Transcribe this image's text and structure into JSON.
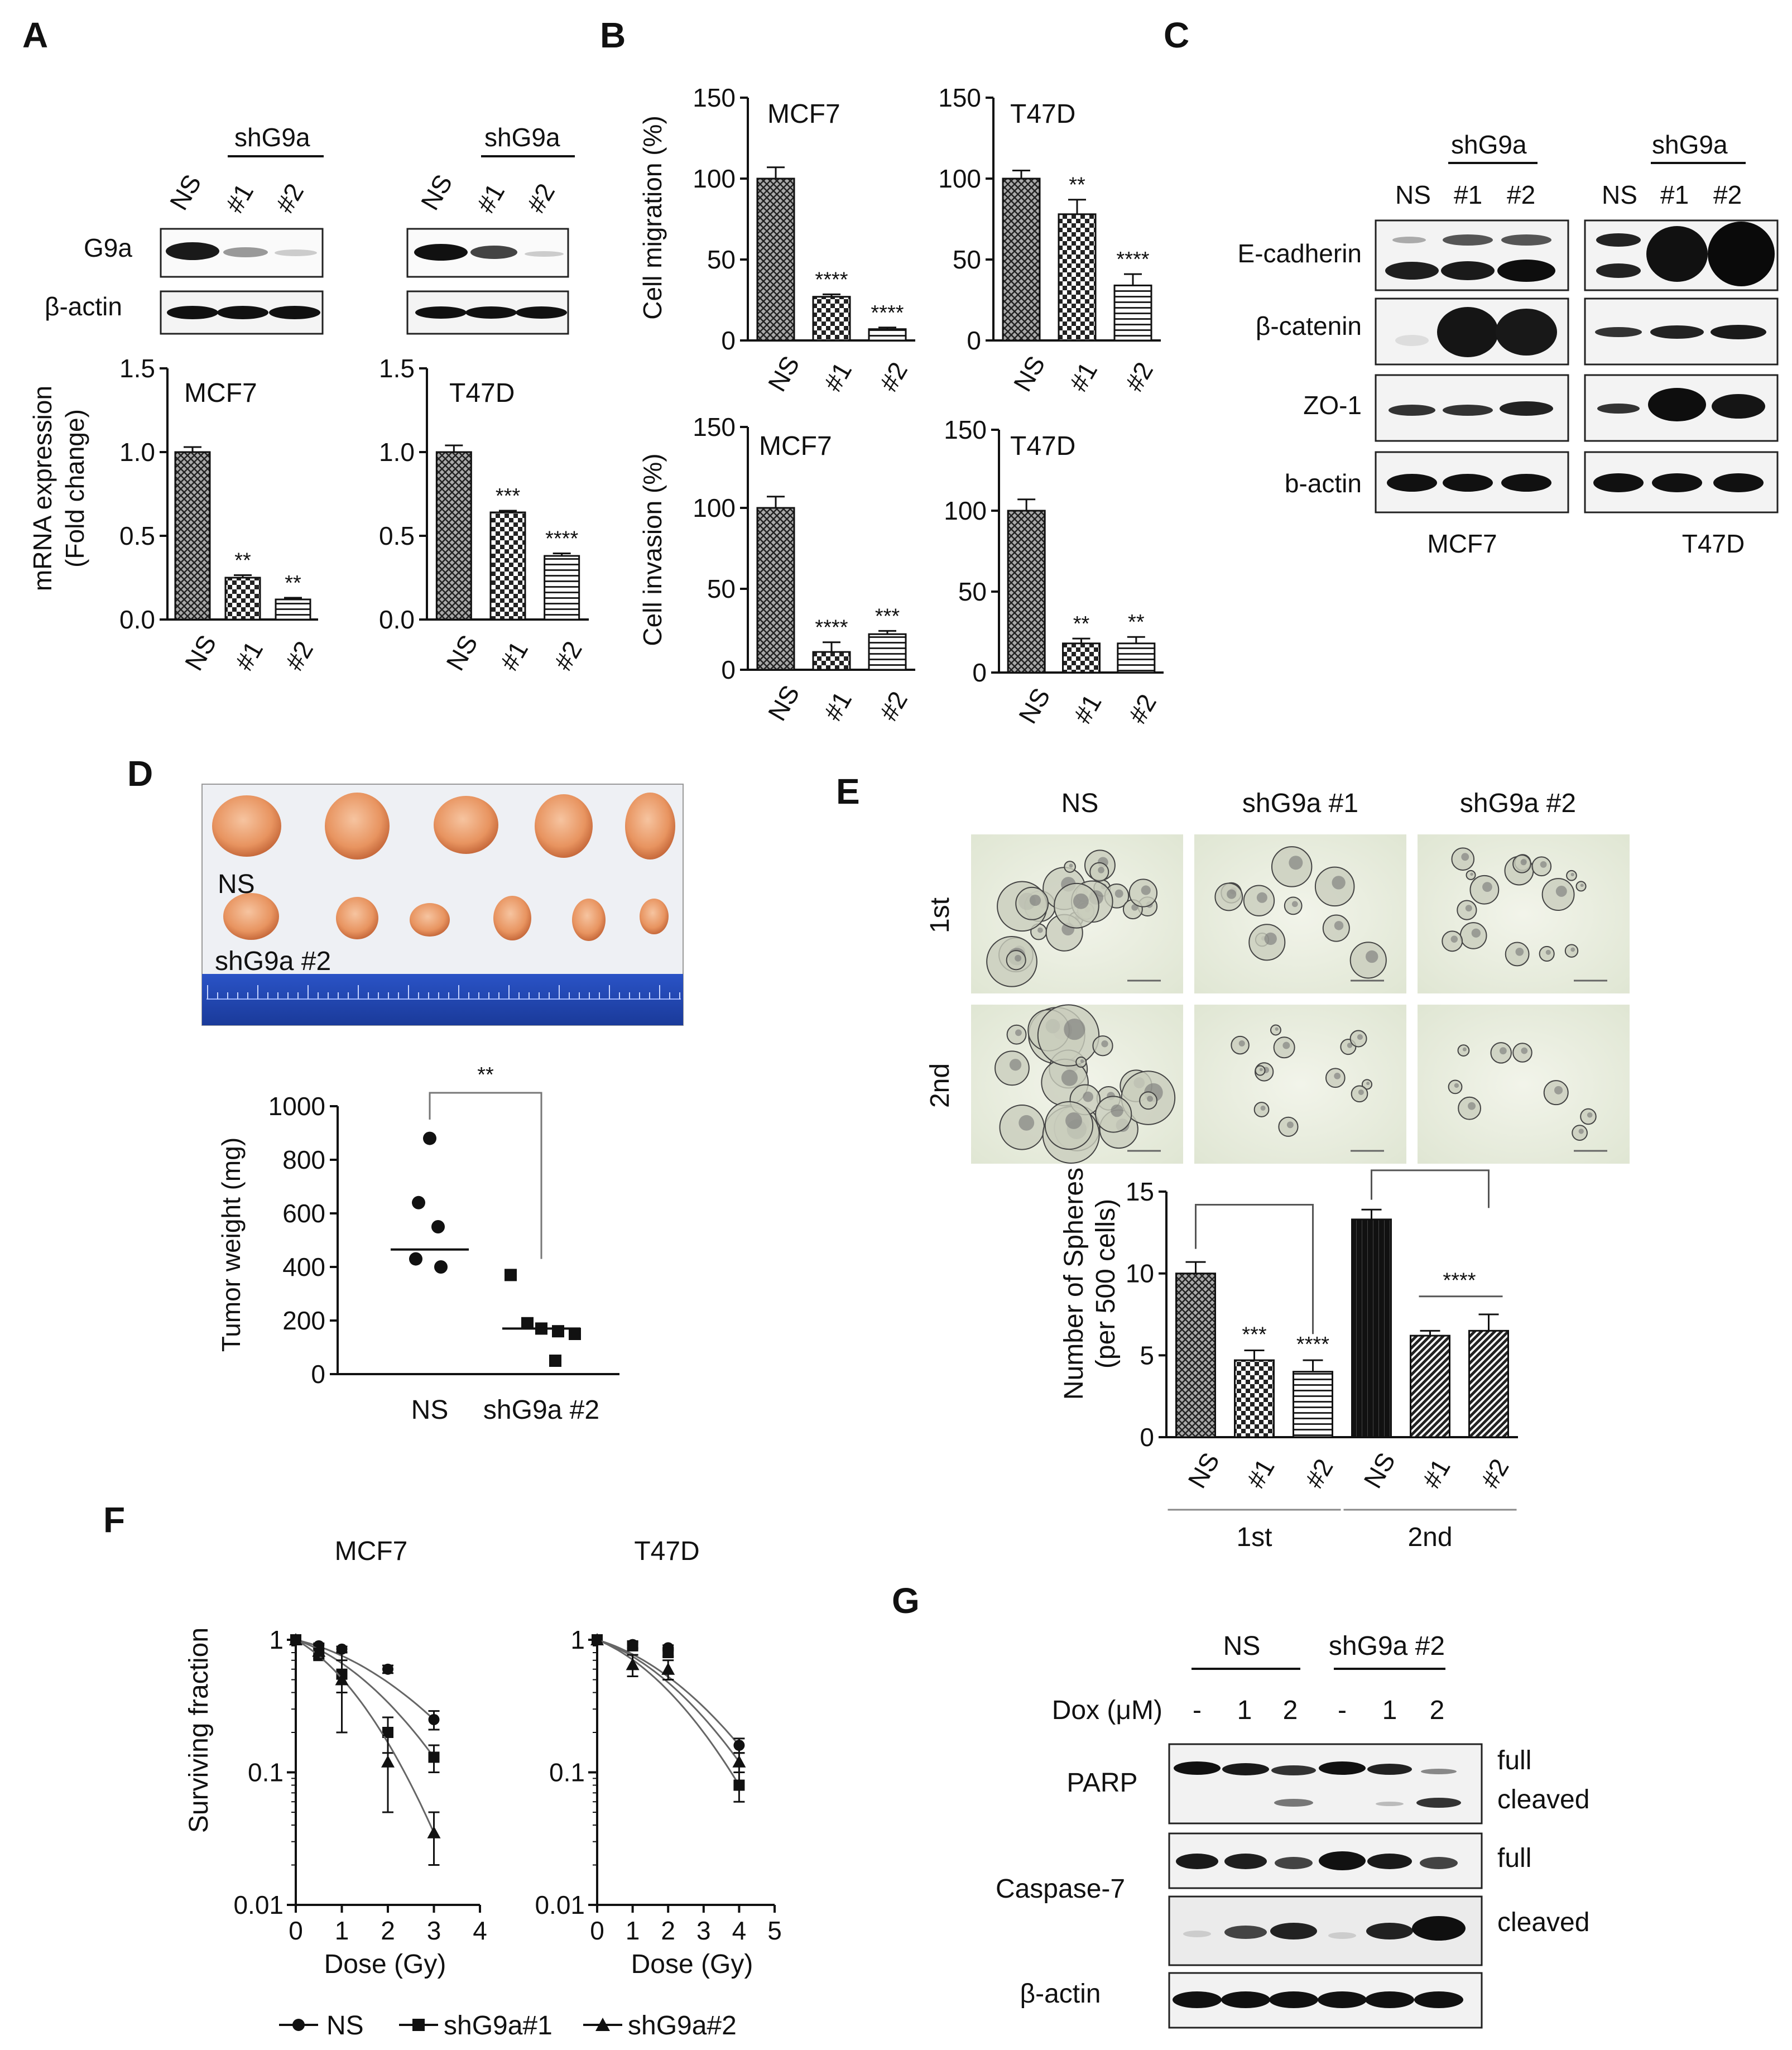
{
  "panel_letters": {
    "A": "A",
    "B": "B",
    "C": "C",
    "D": "D",
    "E": "E",
    "F": "F",
    "G": "G"
  },
  "common": {
    "NS": "NS",
    "n1": "#1",
    "n2": "#2",
    "shG9a": "shG9a",
    "MCF7": "MCF7",
    "T47D": "T47D"
  },
  "panelA": {
    "blot_rows": [
      "G9a",
      "β-actin"
    ],
    "ylabel_1": "mRNA expression",
    "ylabel_2": "(Fold change)",
    "y_ticks": [
      "0.0",
      "0.5",
      "1.0",
      "1.5"
    ]
  },
  "panelB": {
    "ylabel_migration": "Cell migration (%)",
    "ylabel_invasion": "Cell invasion (%)",
    "y_ticks": [
      "0",
      "50",
      "100",
      "150"
    ]
  },
  "panelC": {
    "rows": [
      "E-cadherin",
      "β-catenin",
      "ZO-1",
      "b-actin"
    ]
  },
  "panelD": {
    "photo_label_1": "NS",
    "photo_label_2": "shG9a #2",
    "ylabel": "Tumor weight (mg)",
    "y_ticks": [
      "0",
      "200",
      "400",
      "600",
      "800",
      "1000"
    ],
    "x_labels": [
      "NS",
      "shG9a #2"
    ],
    "sig": "**"
  },
  "panelE": {
    "col_labels": [
      "NS",
      "shG9a #1",
      "shG9a #2"
    ],
    "row_labels": [
      "1st",
      "2nd"
    ],
    "ylabel_1": "Number of Spheres",
    "ylabel_2": "(per 500 cells)",
    "y_ticks": [
      "0",
      "5",
      "10",
      "15"
    ],
    "group_labels": [
      "1st",
      "2nd"
    ],
    "sig_bracket": "****"
  },
  "panelF": {
    "ylabel": "Surviving fraction",
    "xlabel": "Dose (Gy)",
    "y_ticks": [
      "1",
      "0.1",
      "0.01"
    ],
    "legend": [
      "NS",
      "shG9a#1",
      "shG9a#2"
    ]
  },
  "panelG": {
    "group_labels": [
      "NS",
      "shG9a #2"
    ],
    "dox_label": "Dox (μM)",
    "dox_values": [
      "-",
      "1",
      "2",
      "-",
      "1",
      "2"
    ],
    "row_labels": [
      "PARP",
      "Caspase-7",
      "β-actin"
    ],
    "right_labels": [
      "full",
      "cleaved",
      "full",
      "cleaved"
    ]
  },
  "chart_data": [
    {
      "id": "A-MCF7",
      "type": "bar",
      "title": "MCF7",
      "categories": [
        "NS",
        "#1",
        "#2"
      ],
      "values": [
        1.0,
        0.25,
        0.12
      ],
      "errors": [
        0.03,
        0.015,
        0.01
      ],
      "sig": [
        "",
        "**",
        "**"
      ],
      "ylim": [
        0,
        1.5
      ],
      "ylabel": "mRNA expression (Fold change)"
    },
    {
      "id": "A-T47D",
      "type": "bar",
      "title": "T47D",
      "categories": [
        "NS",
        "#1",
        "#2"
      ],
      "values": [
        1.0,
        0.64,
        0.38
      ],
      "errors": [
        0.04,
        0.01,
        0.015
      ],
      "sig": [
        "",
        "***",
        "****"
      ],
      "ylim": [
        0,
        1.5
      ]
    },
    {
      "id": "B-MCF7-migration",
      "type": "bar",
      "title": "MCF7",
      "categories": [
        "NS",
        "#1",
        "#2"
      ],
      "values": [
        100,
        27,
        7
      ],
      "errors": [
        7,
        1.5,
        1
      ],
      "sig": [
        "",
        "****",
        "****"
      ],
      "ylim": [
        0,
        150
      ],
      "ylabel": "Cell migration (%)"
    },
    {
      "id": "B-T47D-migration",
      "type": "bar",
      "title": "T47D",
      "categories": [
        "NS",
        "#1",
        "#2"
      ],
      "values": [
        100,
        78,
        34
      ],
      "errors": [
        5,
        9,
        7
      ],
      "sig": [
        "",
        "**",
        "****"
      ],
      "ylim": [
        0,
        150
      ]
    },
    {
      "id": "B-MCF7-invasion",
      "type": "bar",
      "title": "MCF7",
      "categories": [
        "NS",
        "#1",
        "#2"
      ],
      "values": [
        100,
        11,
        22
      ],
      "errors": [
        7,
        6,
        2
      ],
      "sig": [
        "",
        "****",
        "***"
      ],
      "ylim": [
        0,
        150
      ],
      "ylabel": "Cell invasion (%)"
    },
    {
      "id": "B-T47D-invasion",
      "type": "bar",
      "title": "T47D",
      "categories": [
        "NS",
        "#1",
        "#2"
      ],
      "values": [
        100,
        18,
        18
      ],
      "errors": [
        7,
        3,
        4
      ],
      "sig": [
        "",
        "**",
        "**"
      ],
      "ylim": [
        0,
        150
      ]
    },
    {
      "id": "D-tumor",
      "type": "scatter",
      "categories": [
        "NS",
        "shG9a #2"
      ],
      "points": [
        [
          880,
          640,
          550,
          430,
          400
        ],
        [
          370,
          190,
          170,
          160,
          150,
          50
        ]
      ],
      "medians": [
        465,
        170
      ],
      "ylim": [
        0,
        1000
      ],
      "ylabel": "Tumor weight (mg)"
    },
    {
      "id": "E-spheres",
      "type": "bar",
      "categories": [
        "NS",
        "#1",
        "#2",
        "NS",
        "#1",
        "#2"
      ],
      "groups": [
        "1st",
        "2nd"
      ],
      "values": [
        10.0,
        4.7,
        4.0,
        13.3,
        6.2,
        6.5
      ],
      "errors": [
        0.7,
        0.6,
        0.7,
        0.6,
        0.3,
        1.0
      ],
      "sig": [
        "",
        "***",
        "****",
        "",
        "",
        ""
      ],
      "ylim": [
        0,
        15
      ],
      "ylabel": "Number of Spheres (per 500 cells)"
    },
    {
      "id": "F-MCF7",
      "type": "line",
      "title": "MCF7",
      "scale": "log",
      "xlim": [
        0,
        4
      ],
      "ylim": [
        0.01,
        1
      ],
      "xlabel": "Dose (Gy)",
      "ylabel": "Surviving fraction",
      "series": [
        {
          "name": "NS",
          "x": [
            0,
            0.5,
            1,
            2,
            3
          ],
          "y": [
            1,
            0.9,
            0.85,
            0.6,
            0.25
          ],
          "err": [
            0,
            0.04,
            0.04,
            0.04,
            0.04
          ]
        },
        {
          "name": "shG9a#1",
          "x": [
            0,
            0.5,
            1,
            2,
            3
          ],
          "y": [
            1,
            0.78,
            0.55,
            0.2,
            0.13
          ],
          "err": [
            0,
            0.08,
            0.15,
            0.06,
            0.03
          ]
        },
        {
          "name": "shG9a#2",
          "x": [
            0,
            0.5,
            1,
            2,
            3
          ],
          "y": [
            1,
            0.82,
            0.5,
            0.12,
            0.035
          ],
          "err": [
            0,
            0.1,
            0.3,
            0.07,
            0.015
          ]
        }
      ]
    },
    {
      "id": "F-T47D",
      "type": "line",
      "title": "T47D",
      "scale": "log",
      "xlim": [
        0,
        5
      ],
      "ylim": [
        0.01,
        1
      ],
      "xlabel": "Dose (Gy)",
      "series": [
        {
          "name": "NS",
          "x": [
            0,
            1,
            2,
            4
          ],
          "y": [
            1,
            0.92,
            0.87,
            0.16
          ],
          "err": [
            0,
            0.05,
            0.04,
            0.02
          ]
        },
        {
          "name": "shG9a#1",
          "x": [
            0,
            1,
            2,
            4
          ],
          "y": [
            1,
            0.9,
            0.8,
            0.08
          ],
          "err": [
            0,
            0.05,
            0.05,
            0.02
          ]
        },
        {
          "name": "shG9a#2",
          "x": [
            0,
            1,
            2,
            4
          ],
          "y": [
            1,
            0.65,
            0.6,
            0.12
          ],
          "err": [
            0,
            0.12,
            0.1,
            0.02
          ]
        }
      ]
    }
  ]
}
